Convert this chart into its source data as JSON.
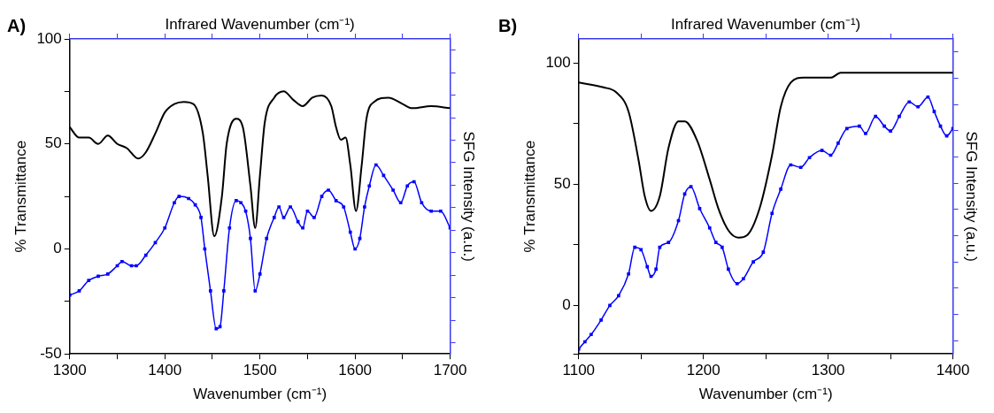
{
  "chart_data": [
    {
      "type": "line",
      "annotations": [
        "A)"
      ],
      "xlabel": "Wavenumber (cm⁻¹)",
      "x2label": "Infrared Wavenumber (cm⁻¹)",
      "ylabel": "% Transmittance",
      "y2label": "SFG Intensity (a.u.)",
      "xlim": [
        1300,
        1700
      ],
      "xticks": [
        1300,
        {
          "value": 1350,
          "label": null
        },
        1400,
        {
          "value": 1450,
          "label": null
        },
        1500,
        {
          "value": 1550,
          "label": null
        },
        1600,
        {
          "value": 1650,
          "label": null
        },
        1700
      ],
      "ylim": [
        -50,
        100
      ],
      "yticks": [
        -50,
        {
          "value": -25,
          "label": null
        },
        0,
        {
          "value": 25,
          "label": null
        },
        50,
        {
          "value": 75,
          "label": null
        },
        100
      ],
      "tick_labels": "xy",
      "grid": false,
      "legend": false,
      "series": [
        {
          "color": "#000000",
          "marker": "none",
          "x": [
            1300,
            1310,
            1320,
            1330,
            1340,
            1350,
            1360,
            1372,
            1380,
            1390,
            1400,
            1410,
            1420,
            1430,
            1440,
            1445,
            1452,
            1460,
            1465,
            1475,
            1482,
            1490,
            1495,
            1500,
            1505,
            1515,
            1525,
            1535,
            1545,
            1555,
            1565,
            1575,
            1580,
            1585,
            1590,
            1595,
            1601,
            1607,
            1612,
            1620,
            1635,
            1650,
            1660,
            1680,
            1700
          ],
          "values": [
            58,
            53,
            53,
            50,
            54,
            50,
            48,
            43,
            46,
            55,
            65,
            69,
            70,
            69,
            55,
            35,
            6,
            25,
            50,
            62,
            58,
            30,
            10,
            35,
            60,
            72,
            75,
            71,
            68,
            72,
            73,
            68,
            58,
            52,
            53,
            40,
            18,
            40,
            62,
            70,
            72,
            69,
            67,
            68,
            67
          ]
        },
        {
          "color": "#0000ff",
          "marker": "square",
          "x": [
            1300,
            1310,
            1320,
            1330,
            1340,
            1350,
            1355,
            1365,
            1370,
            1380,
            1390,
            1400,
            1410,
            1415,
            1425,
            1432,
            1438,
            1442,
            1448,
            1454,
            1458,
            1462,
            1468,
            1475,
            1480,
            1485,
            1490,
            1495,
            1500,
            1507,
            1515,
            1520,
            1525,
            1532,
            1540,
            1545,
            1550,
            1557,
            1565,
            1572,
            1580,
            1588,
            1595,
            1600,
            1605,
            1610,
            1615,
            1622,
            1630,
            1640,
            1648,
            1655,
            1662,
            1670,
            1680,
            1690,
            1700
          ],
          "values": [
            -22,
            -20,
            -15,
            -13,
            -12,
            -8,
            -6,
            -8,
            -8,
            -3,
            3,
            10,
            22,
            25,
            24,
            21,
            15,
            0,
            -20,
            -38,
            -37,
            -20,
            10,
            23,
            22,
            18,
            5,
            -20,
            -12,
            5,
            15,
            20,
            15,
            20,
            13,
            10,
            18,
            15,
            25,
            28,
            23,
            20,
            8,
            0,
            5,
            20,
            30,
            40,
            35,
            28,
            22,
            30,
            32,
            22,
            18,
            18,
            10
          ]
        }
      ]
    },
    {
      "type": "line",
      "annotations": [
        "B)"
      ],
      "xlabel": "Wavenumber (cm⁻¹)",
      "x2label": "Infrared Wavenumber (cm⁻¹)",
      "ylabel": "% Transmittance",
      "y2label": "SFG Intensity (a.u.)",
      "xlim": [
        1100,
        1400
      ],
      "xticks": [
        1100,
        {
          "value": 1150,
          "label": null
        },
        1200,
        {
          "value": 1250,
          "label": null
        },
        1300,
        {
          "value": 1350,
          "label": null
        },
        1400
      ],
      "ylim": [
        -20,
        110
      ],
      "yticks": [
        {
          "value": -20,
          "label": null
        },
        0,
        {
          "value": 25,
          "label": null
        },
        50,
        {
          "value": 75,
          "label": null
        },
        100
      ],
      "tick_labels": "xy",
      "grid": false,
      "legend": false,
      "series": [
        {
          "color": "#000000",
          "marker": "none",
          "x": [
            1100,
            1120,
            1130,
            1140,
            1148,
            1153,
            1158,
            1165,
            1172,
            1180,
            1185,
            1195,
            1205,
            1212,
            1220,
            1228,
            1235,
            1245,
            1255,
            1262,
            1270,
            1280,
            1295,
            1302,
            1310,
            1350,
            1400
          ],
          "values": [
            92,
            90,
            88,
            80,
            60,
            45,
            39,
            45,
            65,
            76,
            76,
            68,
            52,
            40,
            31,
            28,
            29,
            40,
            62,
            82,
            92,
            94,
            94,
            94,
            96,
            96,
            96
          ]
        },
        {
          "color": "#0000ff",
          "marker": "square",
          "x": [
            1100,
            1105,
            1110,
            1118,
            1125,
            1132,
            1140,
            1145,
            1150,
            1155,
            1158,
            1162,
            1165,
            1172,
            1180,
            1185,
            1190,
            1197,
            1205,
            1210,
            1215,
            1220,
            1227,
            1232,
            1240,
            1248,
            1255,
            1262,
            1270,
            1278,
            1285,
            1295,
            1302,
            1308,
            1315,
            1325,
            1330,
            1338,
            1345,
            1350,
            1357,
            1365,
            1372,
            1380,
            1385,
            1390,
            1395,
            1400
          ],
          "values": [
            -18,
            -15,
            -12,
            -6,
            0,
            4,
            13,
            24,
            23,
            16,
            12,
            15,
            24,
            26,
            35,
            46,
            49,
            40,
            32,
            26,
            24,
            15,
            9,
            11,
            18,
            22,
            38,
            48,
            58,
            57,
            61,
            64,
            62,
            67,
            73,
            74,
            71,
            78,
            74,
            72,
            78,
            84,
            82,
            86,
            80,
            74,
            70,
            73
          ]
        }
      ]
    }
  ]
}
